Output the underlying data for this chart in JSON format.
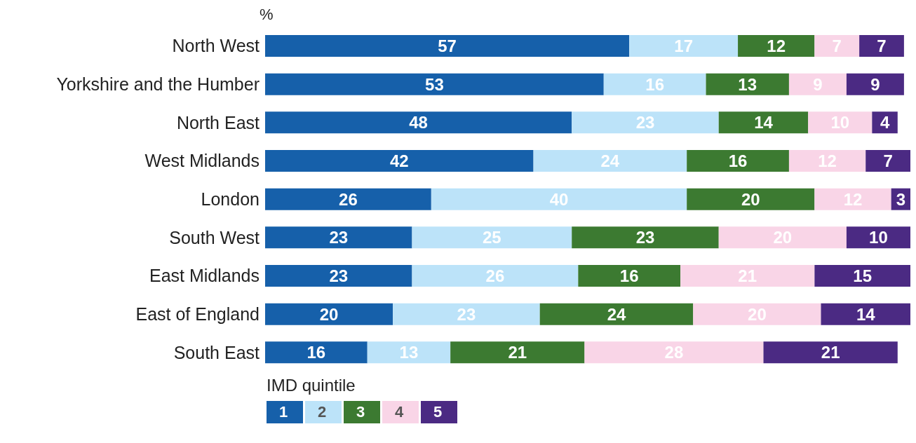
{
  "chart_data": {
    "type": "bar",
    "orientation": "horizontal",
    "stacked": true,
    "xlabel": "%",
    "legend_title": "IMD quintile",
    "legend": "bottom",
    "tick_labels": "y",
    "data_labels": true,
    "xlim": [
      0,
      101
    ],
    "categories": [
      "North West",
      "Yorkshire and the Humber",
      "North East",
      "West Midlands",
      "London",
      "South West",
      "East Midlands",
      "East of England",
      "South East"
    ],
    "series": [
      {
        "name": "1",
        "color": "#1660aa",
        "values": [
          57,
          53,
          48,
          42,
          26,
          23,
          23,
          20,
          16
        ]
      },
      {
        "name": "2",
        "color": "#bce3f9",
        "values": [
          17,
          16,
          23,
          24,
          40,
          25,
          26,
          23,
          13
        ]
      },
      {
        "name": "3",
        "color": "#3c7a31",
        "values": [
          12,
          13,
          14,
          16,
          20,
          23,
          16,
          24,
          21
        ]
      },
      {
        "name": "4",
        "color": "#f9d5e7",
        "values": [
          7,
          9,
          10,
          12,
          12,
          20,
          21,
          20,
          28
        ]
      },
      {
        "name": "5",
        "color": "#4b2a83",
        "values": [
          7,
          9,
          4,
          7,
          3,
          10,
          15,
          14,
          21
        ]
      }
    ]
  }
}
